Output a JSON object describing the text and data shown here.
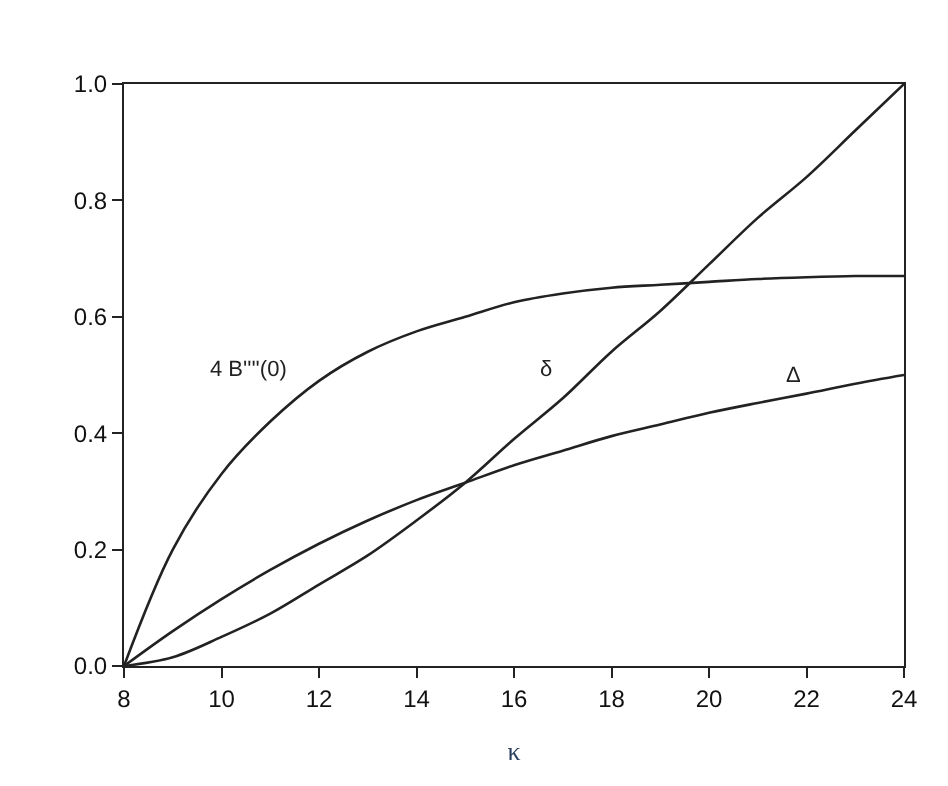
{
  "chart_data": {
    "type": "line",
    "xlabel": "κ",
    "x": [
      8,
      9,
      10,
      11,
      12,
      13,
      14,
      15,
      16,
      17,
      18,
      19,
      20,
      21,
      22,
      23,
      24
    ],
    "series": [
      {
        "name": "4 B''''(0)",
        "color": "#222222",
        "values": [
          0,
          0.2,
          0.33,
          0.42,
          0.49,
          0.54,
          0.575,
          0.6,
          0.625,
          0.64,
          0.65,
          0.655,
          0.66,
          0.665,
          0.668,
          0.67,
          0.67
        ]
      },
      {
        "name": "δ",
        "color": "#222222",
        "values": [
          0,
          0.015,
          0.05,
          0.09,
          0.14,
          0.19,
          0.25,
          0.315,
          0.39,
          0.46,
          0.54,
          0.61,
          0.69,
          0.77,
          0.84,
          0.92,
          1.0
        ]
      },
      {
        "name": "Δ",
        "color": "#222222",
        "values": [
          0,
          0.06,
          0.115,
          0.165,
          0.21,
          0.25,
          0.285,
          0.315,
          0.345,
          0.37,
          0.395,
          0.415,
          0.435,
          0.452,
          0.468,
          0.485,
          0.5
        ]
      }
    ],
    "xlim": [
      8,
      24
    ],
    "xticks": [
      8,
      10,
      12,
      14,
      16,
      18,
      20,
      22,
      24
    ],
    "ylim": [
      0,
      1.0
    ],
    "yticks": [
      {
        "value": 0,
        "label": "0.0"
      },
      {
        "value": 0.2,
        "label": "0.2"
      },
      {
        "value": 0.4,
        "label": "0.4"
      },
      {
        "value": 0.6,
        "label": "0.6"
      },
      {
        "value": 0.8,
        "label": "0.8"
      },
      {
        "value": 1.0,
        "label": "1.0"
      }
    ],
    "legend": false,
    "marker": "none",
    "line_style": "solid"
  }
}
